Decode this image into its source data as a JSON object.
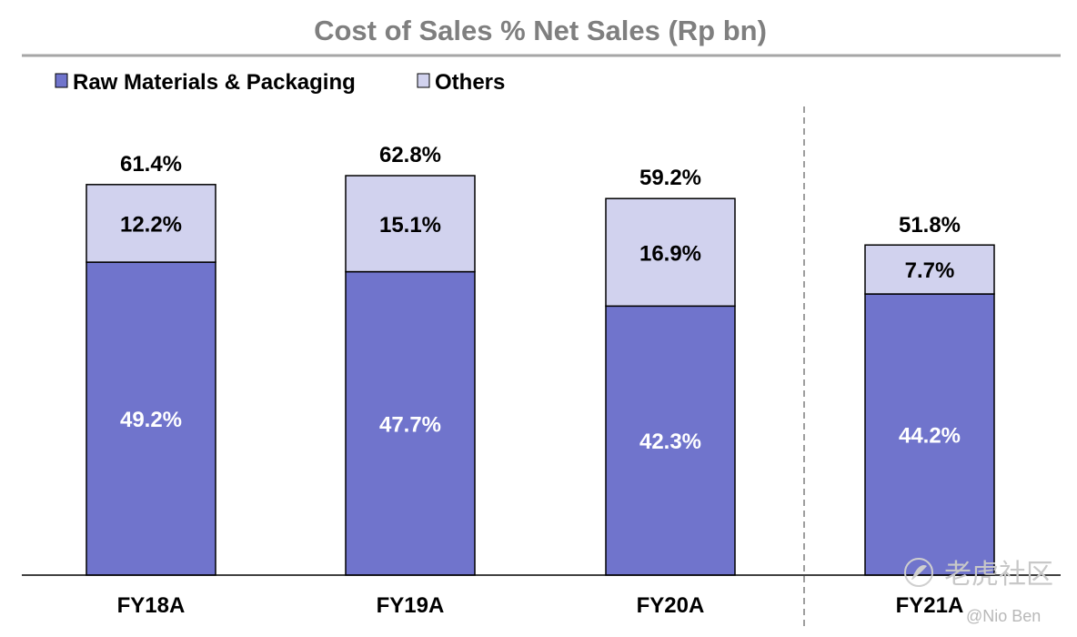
{
  "chart_data": {
    "type": "bar",
    "stacked": true,
    "title": "Cost of Sales % Net Sales (Rp bn)",
    "categories": [
      "FY18A",
      "FY19A",
      "FY20A",
      "FY21A"
    ],
    "series": [
      {
        "name": "Raw Materials & Packaging",
        "color": "#7074cc",
        "values": [
          49.2,
          47.7,
          42.3,
          44.2
        ],
        "labels": [
          "49.2%",
          "47.7%",
          "42.3%",
          "44.2%"
        ]
      },
      {
        "name": "Others",
        "color": "#d1d2ee",
        "values": [
          12.2,
          15.1,
          16.9,
          7.7
        ],
        "labels": [
          "12.2%",
          "15.1%",
          "16.9%",
          "7.7%"
        ]
      }
    ],
    "totals": [
      61.4,
      62.8,
      59.2,
      51.8
    ],
    "total_labels": [
      "61.4%",
      "62.8%",
      "59.2%",
      "51.8%"
    ],
    "ylim": [
      0,
      70
    ],
    "legend_position": "top-left",
    "separator_before": "FY21A"
  },
  "watermark": {
    "text": "老虎社区",
    "author": "@Nio Ben"
  }
}
